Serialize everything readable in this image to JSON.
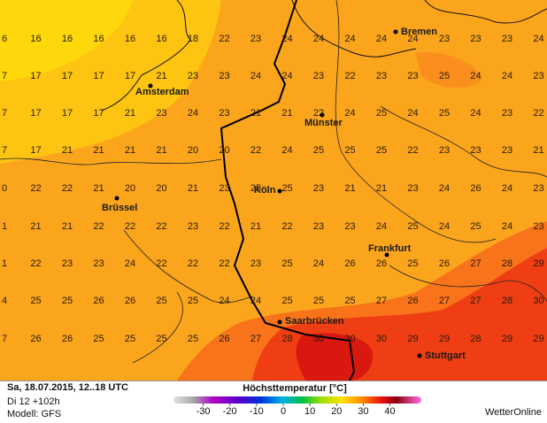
{
  "map": {
    "grid_rows": [
      [
        "6",
        "16",
        "16",
        "16",
        "16",
        "16",
        "18",
        "22",
        "23",
        "24",
        "24",
        "24",
        "24",
        "24",
        "23",
        "23",
        "23",
        "24"
      ],
      [
        "7",
        "17",
        "17",
        "17",
        "17",
        "21",
        "23",
        "23",
        "24",
        "24",
        "23",
        "22",
        "23",
        "23",
        "25",
        "24",
        "24",
        "23"
      ],
      [
        "7",
        "17",
        "17",
        "17",
        "21",
        "23",
        "24",
        "23",
        "21",
        "21",
        "22",
        "24",
        "25",
        "24",
        "25",
        "24",
        "23",
        "22"
      ],
      [
        "7",
        "17",
        "21",
        "21",
        "21",
        "21",
        "20",
        "20",
        "22",
        "24",
        "25",
        "25",
        "25",
        "22",
        "23",
        "23",
        "23",
        "21"
      ],
      [
        "0",
        "22",
        "22",
        "21",
        "20",
        "20",
        "21",
        "23",
        "25",
        "25",
        "23",
        "21",
        "21",
        "23",
        "24",
        "26",
        "24",
        "23"
      ],
      [
        "1",
        "21",
        "21",
        "22",
        "22",
        "22",
        "23",
        "22",
        "21",
        "22",
        "23",
        "23",
        "24",
        "25",
        "24",
        "25",
        "24",
        "23"
      ],
      [
        "1",
        "22",
        "23",
        "23",
        "24",
        "22",
        "22",
        "22",
        "23",
        "25",
        "24",
        "26",
        "26",
        "25",
        "26",
        "27",
        "28",
        "29"
      ],
      [
        "4",
        "25",
        "25",
        "26",
        "26",
        "25",
        "25",
        "24",
        "24",
        "25",
        "25",
        "25",
        "27",
        "26",
        "27",
        "27",
        "28",
        "30"
      ],
      [
        "7",
        "26",
        "26",
        "25",
        "25",
        "25",
        "25",
        "26",
        "27",
        "28",
        "30",
        "30",
        "30",
        "29",
        "29",
        "28",
        "29",
        "29"
      ]
    ],
    "cities": [
      "Bremen",
      "Amsterdam",
      "Münster",
      "Köln",
      "Brüssel",
      "Frankfurt",
      "Saarbrücken",
      "Stuttgart"
    ]
  },
  "footer": {
    "date": "Sa, 18.07.2015, 12..18 UTC",
    "run": "Di 12 +102h",
    "model": "Modell: GFS",
    "brand": "WetterOnline"
  },
  "legend": {
    "title": "Höchsttemperatur [°C]",
    "ticks": [
      -30,
      -20,
      -10,
      0,
      10,
      20,
      30,
      40
    ]
  }
}
